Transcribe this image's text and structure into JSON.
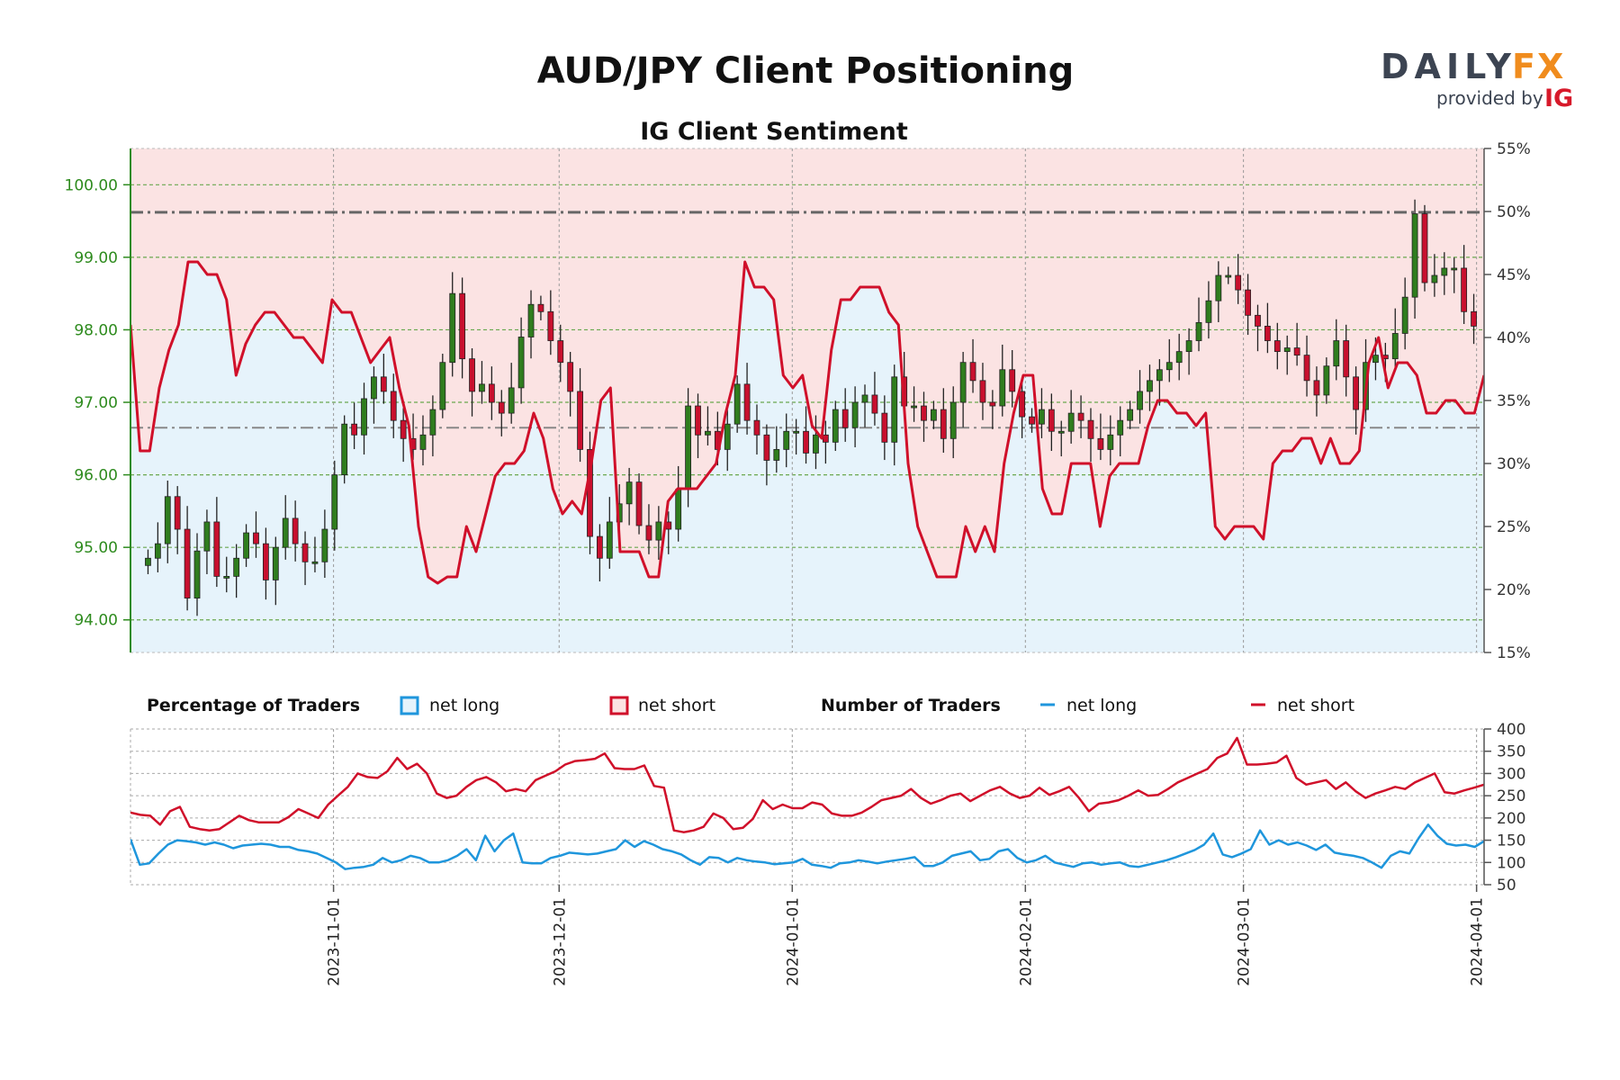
{
  "title": "AUD/JPY Client Positioning",
  "subtitle": "IG Client Sentiment",
  "brand": {
    "name_part1": "DAILY",
    "name_part2": "FX",
    "tagline": "provided by",
    "ig": "IG",
    "colors": {
      "daily": "#3c4452",
      "fx": "#f08c1e",
      "ig": "#d7192a"
    }
  },
  "legend": {
    "pct_heading": "Percentage of Traders",
    "pct_long": "net long",
    "pct_short": "net short",
    "num_heading": "Number of Traders",
    "num_long": "net long",
    "num_short": "net short"
  },
  "colors": {
    "price_axis": "#2e8b1e",
    "net_long": "#1f96dc",
    "net_short": "#d0102a",
    "bull_candle": "#2f7d1e",
    "bear_candle": "#c8102e",
    "long_fill": "#e6f3fb",
    "short_fill": "#fbe3e3"
  },
  "chart_data": [
    {
      "type": "candlestick",
      "name": "price",
      "ylim": [
        93.55,
        100.5
      ],
      "yticks": [
        "94.00",
        "95.00",
        "96.00",
        "97.00",
        "98.00",
        "99.00",
        "100.00"
      ],
      "reference_lines": [
        99.62,
        96.65
      ],
      "x_dates": [
        "2023-10-05",
        "2024-04-02"
      ],
      "x_ticks": [
        "2023-11-01",
        "2023-12-01",
        "2024-01-01",
        "2024-02-01",
        "2024-03-01",
        "2024-04-01"
      ],
      "closes": [
        94.85,
        95.05,
        95.7,
        95.25,
        94.3,
        94.95,
        95.35,
        94.6,
        94.6,
        94.85,
        95.2,
        95.05,
        94.55,
        95.0,
        95.4,
        95.05,
        94.8,
        94.8,
        95.25,
        96.0,
        96.7,
        96.55,
        97.05,
        97.35,
        97.15,
        96.75,
        96.5,
        96.35,
        96.55,
        96.9,
        97.55,
        98.5,
        97.6,
        97.15,
        97.25,
        97.0,
        96.85,
        97.2,
        97.9,
        98.35,
        98.25,
        97.85,
        97.55,
        97.15,
        96.35,
        95.15,
        94.85,
        95.35,
        95.6,
        95.9,
        95.3,
        95.1,
        95.35,
        95.25,
        95.8,
        96.95,
        96.55,
        96.6,
        96.35,
        96.7,
        97.25,
        96.75,
        96.55,
        96.2,
        96.35,
        96.6,
        96.6,
        96.3,
        96.55,
        96.45,
        96.9,
        96.65,
        97.0,
        97.1,
        96.85,
        96.45,
        97.35,
        96.95,
        96.95,
        96.75,
        96.9,
        96.5,
        97.0,
        97.55,
        97.3,
        97.0,
        96.95,
        97.45,
        97.15,
        96.8,
        96.7,
        96.9,
        96.6,
        96.6,
        96.85,
        96.75,
        96.5,
        96.35,
        96.55,
        96.75,
        96.9,
        97.15,
        97.3,
        97.45,
        97.55,
        97.7,
        97.85,
        98.1,
        98.4,
        98.75,
        98.75,
        98.55,
        98.2,
        98.05,
        97.85,
        97.7,
        97.75,
        97.65,
        97.3,
        97.1,
        97.5,
        97.85,
        97.35,
        96.9,
        97.55,
        97.65,
        97.6,
        97.95,
        98.45,
        99.6,
        98.65,
        98.75,
        98.85,
        98.85,
        98.25,
        98.05
      ]
    },
    {
      "type": "line",
      "name": "net short percentage",
      "ylim": [
        15,
        55
      ],
      "yticks": [
        "15%",
        "20%",
        "25%",
        "30%",
        "35%",
        "40%",
        "45%",
        "50%",
        "55%"
      ],
      "values": [
        41,
        31,
        31,
        36,
        39,
        41,
        46,
        46,
        45,
        45,
        43,
        37,
        39.5,
        41,
        42,
        42,
        41,
        40,
        40,
        39,
        38,
        43,
        42,
        42,
        40,
        38,
        39,
        40,
        36,
        33,
        25,
        21,
        20.5,
        21,
        21,
        25,
        23,
        26,
        29,
        30,
        30,
        31,
        34,
        32,
        28,
        26,
        27,
        26,
        30,
        35,
        36,
        23,
        23,
        23,
        21,
        21,
        27,
        28,
        28,
        28,
        29,
        30,
        34,
        37,
        46,
        44,
        44,
        43,
        37,
        36,
        37,
        33,
        32,
        39,
        43,
        43,
        44,
        44,
        44,
        42,
        41,
        30,
        25,
        23,
        21,
        21,
        21,
        25,
        23,
        25,
        23,
        30,
        34,
        37,
        37,
        28,
        26,
        26,
        30,
        30,
        30,
        25,
        29,
        30,
        30,
        30,
        33,
        35,
        35,
        34,
        34,
        33,
        34,
        25,
        24,
        25,
        25,
        25,
        24,
        30,
        31,
        31,
        32,
        32,
        30,
        32,
        30,
        30,
        31,
        38,
        40,
        36,
        38,
        38,
        37,
        34,
        34,
        35,
        35,
        34,
        34,
        37
      ]
    },
    {
      "type": "line",
      "name": "number of traders",
      "ylim": [
        50,
        400
      ],
      "yticks": [
        "50",
        "100",
        "150",
        "200",
        "250",
        "300",
        "350",
        "400"
      ],
      "net_short": [
        212,
        207,
        205,
        185,
        215,
        225,
        180,
        175,
        172,
        175,
        190,
        205,
        195,
        190,
        190,
        190,
        202,
        220,
        210,
        200,
        230,
        250,
        270,
        300,
        292,
        290,
        305,
        335,
        310,
        322,
        300,
        255,
        245,
        250,
        270,
        285,
        292,
        280,
        260,
        265,
        260,
        285,
        295,
        305,
        320,
        328,
        330,
        333,
        345,
        312,
        310,
        310,
        318,
        272,
        268,
        172,
        168,
        172,
        180,
        210,
        200,
        175,
        178,
        198,
        240,
        220,
        230,
        222,
        222,
        235,
        230,
        210,
        205,
        205,
        212,
        225,
        240,
        245,
        250,
        265,
        245,
        232,
        240,
        250,
        255,
        238,
        250,
        262,
        270,
        255,
        245,
        250,
        268,
        252,
        260,
        270,
        245,
        215,
        232,
        235,
        240,
        250,
        262,
        250,
        252,
        265,
        280,
        290,
        300,
        310,
        335,
        345,
        380,
        320,
        320,
        322,
        325,
        340,
        290,
        275,
        280,
        285,
        265,
        280,
        260,
        245,
        255,
        262,
        270,
        265,
        280,
        290,
        300,
        258,
        255,
        262,
        268,
        275
      ]
    },
    {
      "type": "line",
      "name": "number of traders net long",
      "values": [
        152,
        95,
        98,
        120,
        140,
        150,
        148,
        145,
        140,
        145,
        140,
        132,
        138,
        140,
        142,
        140,
        135,
        135,
        128,
        125,
        120,
        110,
        100,
        85,
        88,
        90,
        95,
        110,
        100,
        105,
        115,
        110,
        100,
        100,
        105,
        115,
        130,
        105,
        160,
        125,
        150,
        165,
        100,
        98,
        98,
        110,
        115,
        122,
        120,
        118,
        120,
        125,
        130,
        150,
        135,
        148,
        140,
        130,
        125,
        118,
        105,
        95,
        112,
        110,
        100,
        110,
        105,
        102,
        100,
        96,
        98,
        100,
        108,
        95,
        92,
        88,
        98,
        100,
        105,
        102,
        98,
        102,
        105,
        108,
        112,
        92,
        92,
        100,
        115,
        120,
        125,
        105,
        108,
        125,
        130,
        110,
        100,
        105,
        115,
        100,
        95,
        90,
        98,
        100,
        95,
        98,
        100,
        92,
        90,
        95,
        100,
        105,
        112,
        120,
        128,
        140,
        165,
        118,
        112,
        120,
        130,
        172,
        140,
        150,
        140,
        145,
        138,
        128,
        140,
        122,
        118,
        115,
        110,
        100,
        88,
        115,
        125,
        120,
        155,
        185,
        160,
        142,
        138,
        140,
        135,
        148
      ]
    }
  ]
}
